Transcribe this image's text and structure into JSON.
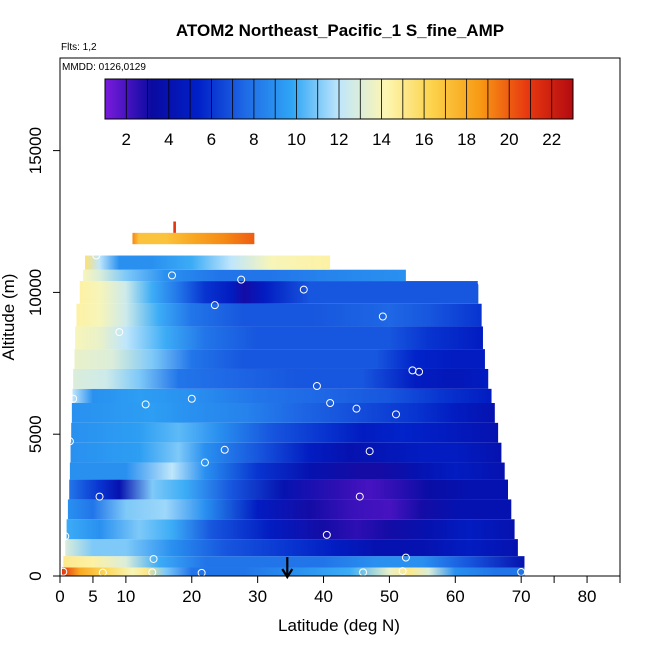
{
  "chart_data": {
    "type": "heatmap",
    "title": "ATOM2 Northeast_Pacific_1 S_fine_AMP",
    "flights_note": "Flts: 1,2",
    "dates_note": "MMDD: 0126,0129",
    "xlabel": "Latitude (deg N)",
    "ylabel": "Altitude (m)",
    "xlim": [
      0,
      85
    ],
    "ylim": [
      0,
      17000
    ],
    "x_ticks": [
      0,
      5,
      10,
      20,
      30,
      40,
      50,
      60,
      70,
      80
    ],
    "x_minor_ticks": [
      75,
      85
    ],
    "y_ticks": [
      0,
      5000,
      10000,
      15000
    ],
    "colorbar": {
      "range": [
        1,
        23
      ],
      "ticks": [
        2,
        4,
        6,
        8,
        10,
        12,
        14,
        16,
        18,
        20,
        22
      ],
      "colors": [
        "#7a1bdc",
        "#0a0aa0",
        "#0020c8",
        "#1f6ae6",
        "#2fa6f5",
        "#bfe6fb",
        "#fdf6b2",
        "#fcd24a",
        "#f89a14",
        "#e83a10",
        "#b40a10"
      ]
    },
    "marker": {
      "label": "arrow",
      "latitude": 34.5
    },
    "rows": [
      {
        "z0": 0,
        "z1": 300,
        "x0": 0.3,
        "x1": 70.5,
        "stops": [
          [
            0.3,
            21
          ],
          [
            3,
            18
          ],
          [
            7,
            16
          ],
          [
            11,
            14
          ],
          [
            13,
            15
          ],
          [
            16,
            11
          ],
          [
            20,
            8
          ],
          [
            28,
            8
          ],
          [
            36,
            9
          ],
          [
            44,
            10
          ],
          [
            50,
            13.5
          ],
          [
            53,
            15
          ],
          [
            56,
            13
          ],
          [
            60,
            9
          ],
          [
            66,
            8
          ],
          [
            70.5,
            8
          ]
        ]
      },
      {
        "z0": 300,
        "z1": 700,
        "x0": 0.5,
        "x1": 70.5,
        "stops": [
          [
            0.5,
            15
          ],
          [
            5,
            14.5
          ],
          [
            10,
            13
          ],
          [
            15,
            10
          ],
          [
            22,
            8
          ],
          [
            30,
            8
          ],
          [
            40,
            8
          ],
          [
            48,
            9
          ],
          [
            55,
            9
          ],
          [
            62,
            7
          ],
          [
            70.5,
            4
          ]
        ]
      },
      {
        "z0": 700,
        "z1": 1300,
        "x0": 0.8,
        "x1": 69.5,
        "stops": [
          [
            0.8,
            13
          ],
          [
            5,
            11
          ],
          [
            10,
            11
          ],
          [
            17,
            9
          ],
          [
            25,
            7
          ],
          [
            35,
            6
          ],
          [
            42,
            5
          ],
          [
            48,
            4
          ],
          [
            55,
            4
          ],
          [
            62,
            5
          ],
          [
            69.5,
            4
          ]
        ]
      },
      {
        "z0": 1300,
        "z1": 2000,
        "x0": 1,
        "x1": 69,
        "stops": [
          [
            1,
            10
          ],
          [
            6,
            9
          ],
          [
            12,
            11
          ],
          [
            17,
            10
          ],
          [
            23,
            7
          ],
          [
            32,
            5
          ],
          [
            40,
            3
          ],
          [
            45,
            2.5
          ],
          [
            50,
            3
          ],
          [
            56,
            4
          ],
          [
            62,
            5
          ],
          [
            69,
            4
          ]
        ]
      },
      {
        "z0": 2000,
        "z1": 2700,
        "x0": 1.2,
        "x1": 68.5,
        "stops": [
          [
            1.2,
            9
          ],
          [
            5,
            8
          ],
          [
            10,
            11
          ],
          [
            16,
            11.5
          ],
          [
            22,
            9
          ],
          [
            30,
            5
          ],
          [
            38,
            3
          ],
          [
            44,
            2.3
          ],
          [
            50,
            2
          ],
          [
            55,
            3
          ],
          [
            60,
            4
          ],
          [
            68.5,
            4
          ]
        ]
      },
      {
        "z0": 2700,
        "z1": 3400,
        "x0": 1.4,
        "x1": 68,
        "stops": [
          [
            1.4,
            8
          ],
          [
            6,
            6
          ],
          [
            9,
            4
          ],
          [
            14,
            11
          ],
          [
            19,
            10
          ],
          [
            26,
            7
          ],
          [
            34,
            4
          ],
          [
            42,
            2.5
          ],
          [
            47,
            2
          ],
          [
            51,
            2.5
          ],
          [
            56,
            3.5
          ],
          [
            62,
            4
          ],
          [
            68,
            4
          ]
        ]
      },
      {
        "z0": 3400,
        "z1": 4000,
        "x0": 1.5,
        "x1": 67.5,
        "stops": [
          [
            1.5,
            9
          ],
          [
            10,
            9
          ],
          [
            17,
            12
          ],
          [
            22,
            9
          ],
          [
            30,
            6
          ],
          [
            38,
            4
          ],
          [
            45,
            3
          ],
          [
            49,
            3
          ],
          [
            54,
            4
          ],
          [
            60,
            5
          ],
          [
            67.5,
            4
          ]
        ]
      },
      {
        "z0": 4000,
        "z1": 4700,
        "x0": 1.6,
        "x1": 67,
        "stops": [
          [
            1.6,
            9
          ],
          [
            12,
            9.5
          ],
          [
            18,
            11
          ],
          [
            22,
            9
          ],
          [
            30,
            7
          ],
          [
            38,
            5
          ],
          [
            44,
            4
          ],
          [
            50,
            4.5
          ],
          [
            55,
            5
          ],
          [
            60,
            5
          ],
          [
            67,
            4
          ]
        ]
      },
      {
        "z0": 4700,
        "z1": 5400,
        "x0": 1.7,
        "x1": 66.5,
        "stops": [
          [
            1.7,
            9
          ],
          [
            12,
            9.5
          ],
          [
            18,
            10.5
          ],
          [
            24,
            9
          ],
          [
            32,
            7
          ],
          [
            40,
            6
          ],
          [
            46,
            5
          ],
          [
            52,
            5.5
          ],
          [
            58,
            5
          ],
          [
            66.5,
            4
          ]
        ]
      },
      {
        "z0": 5400,
        "z1": 6100,
        "x0": 1.8,
        "x1": 66,
        "stops": [
          [
            1.8,
            9
          ],
          [
            14,
            9.5
          ],
          [
            20,
            9
          ],
          [
            28,
            8.5
          ],
          [
            36,
            7.5
          ],
          [
            42,
            7
          ],
          [
            48,
            6.5
          ],
          [
            54,
            6
          ],
          [
            60,
            5
          ],
          [
            66,
            4
          ]
        ]
      },
      {
        "z0": 6100,
        "z1": 6600,
        "x0": 1.9,
        "x1": 65.5,
        "stops": [
          [
            1.9,
            12
          ],
          [
            5,
            9
          ],
          [
            12,
            9.5
          ],
          [
            20,
            9
          ],
          [
            30,
            8
          ],
          [
            40,
            7.5
          ],
          [
            50,
            7
          ],
          [
            58,
            6
          ],
          [
            65.5,
            5
          ]
        ]
      },
      {
        "z0": 6600,
        "z1": 7300,
        "x0": 2,
        "x1": 65,
        "stops": [
          [
            2,
            13
          ],
          [
            7,
            12.5
          ],
          [
            12,
            11
          ],
          [
            18,
            8
          ],
          [
            26,
            7.5
          ],
          [
            36,
            7
          ],
          [
            46,
            7
          ],
          [
            54,
            5
          ],
          [
            60,
            4.5
          ],
          [
            65,
            5
          ]
        ]
      },
      {
        "z0": 7300,
        "z1": 8000,
        "x0": 2.2,
        "x1": 64.5,
        "stops": [
          [
            2.2,
            13.5
          ],
          [
            8,
            13
          ],
          [
            14,
            11
          ],
          [
            20,
            8
          ],
          [
            28,
            7
          ],
          [
            38,
            7
          ],
          [
            48,
            7
          ],
          [
            54,
            5.5
          ],
          [
            60,
            5
          ],
          [
            64.5,
            5
          ]
        ]
      },
      {
        "z0": 8000,
        "z1": 8800,
        "x0": 2.3,
        "x1": 64.2,
        "stops": [
          [
            2.3,
            14
          ],
          [
            6,
            13.5
          ],
          [
            10,
            12
          ],
          [
            16,
            10
          ],
          [
            22,
            8
          ],
          [
            30,
            7
          ],
          [
            40,
            7
          ],
          [
            50,
            7
          ],
          [
            56,
            6
          ],
          [
            64.2,
            5
          ]
        ]
      },
      {
        "z0": 8800,
        "z1": 9600,
        "x0": 2.5,
        "x1": 64,
        "stops": [
          [
            2.5,
            14.5
          ],
          [
            6,
            14
          ],
          [
            10,
            12.5
          ],
          [
            15,
            10
          ],
          [
            20,
            8
          ],
          [
            28,
            7
          ],
          [
            38,
            7
          ],
          [
            50,
            7.5
          ],
          [
            56,
            7
          ],
          [
            64,
            6
          ]
        ]
      },
      {
        "z0": 9600,
        "z1": 10400,
        "x0": 3,
        "x1": 63.5,
        "stops": [
          [
            3,
            14.5
          ],
          [
            6,
            14
          ],
          [
            10,
            12.5
          ],
          [
            14,
            10
          ],
          [
            18,
            8
          ],
          [
            22,
            6
          ],
          [
            26,
            5
          ],
          [
            28,
            3
          ],
          [
            31,
            5
          ],
          [
            38,
            7
          ],
          [
            48,
            7
          ],
          [
            56,
            7
          ],
          [
            63.5,
            7
          ]
        ]
      },
      {
        "z0": 10400,
        "z1": 10800,
        "x0": 3.5,
        "x1": 52.5,
        "stops": [
          [
            3.5,
            14
          ],
          [
            6,
            13
          ],
          [
            10,
            11
          ],
          [
            16,
            9
          ],
          [
            24,
            8
          ],
          [
            32,
            8
          ],
          [
            40,
            8.5
          ],
          [
            52.5,
            9
          ]
        ]
      },
      {
        "z0": 10800,
        "z1": 11300,
        "x0": 3.8,
        "x1": 41,
        "stops": [
          [
            3.8,
            15.5
          ],
          [
            6,
            12
          ],
          [
            9,
            9
          ],
          [
            14,
            9
          ],
          [
            20,
            10
          ],
          [
            26,
            12
          ],
          [
            32,
            14
          ],
          [
            41,
            14.5
          ]
        ]
      },
      {
        "z0": 11700,
        "z1": 12100,
        "x0": 11,
        "x1": 29.5,
        "stops": [
          [
            11,
            19
          ],
          [
            12,
            17
          ],
          [
            16,
            17
          ],
          [
            20,
            18
          ],
          [
            25,
            19
          ],
          [
            29.5,
            20
          ]
        ]
      },
      {
        "z0": 12100,
        "z1": 12500,
        "x0": 17.2,
        "x1": 17.6,
        "stops": [
          [
            17.2,
            21
          ],
          [
            17.6,
            21
          ]
        ]
      }
    ],
    "points": [
      {
        "lat": 0.5,
        "alt": 150
      },
      {
        "lat": 6.5,
        "alt": 120
      },
      {
        "lat": 14,
        "alt": 130
      },
      {
        "lat": 21.5,
        "alt": 110
      },
      {
        "lat": 46,
        "alt": 130
      },
      {
        "lat": 52,
        "alt": 170
      },
      {
        "lat": 70,
        "alt": 140
      },
      {
        "lat": 14.2,
        "alt": 600
      },
      {
        "lat": 52.5,
        "alt": 650
      },
      {
        "lat": 0.8,
        "alt": 1400
      },
      {
        "lat": 40.5,
        "alt": 1450
      },
      {
        "lat": 6,
        "alt": 2800
      },
      {
        "lat": 45.5,
        "alt": 2800
      },
      {
        "lat": 22,
        "alt": 4000
      },
      {
        "lat": 25,
        "alt": 4450
      },
      {
        "lat": 47,
        "alt": 4400
      },
      {
        "lat": 1.5,
        "alt": 4750
      },
      {
        "lat": 51,
        "alt": 5700
      },
      {
        "lat": 45,
        "alt": 5900
      },
      {
        "lat": 13,
        "alt": 6050
      },
      {
        "lat": 41,
        "alt": 6100
      },
      {
        "lat": 20,
        "alt": 6250
      },
      {
        "lat": 2,
        "alt": 6250
      },
      {
        "lat": 39,
        "alt": 6700
      },
      {
        "lat": 53.5,
        "alt": 7250
      },
      {
        "lat": 54.5,
        "alt": 7200
      },
      {
        "lat": 9,
        "alt": 8600
      },
      {
        "lat": 49,
        "alt": 9150
      },
      {
        "lat": 23.5,
        "alt": 9550
      },
      {
        "lat": 37,
        "alt": 10100
      },
      {
        "lat": 27.5,
        "alt": 10450
      },
      {
        "lat": 64,
        "alt": 10350
      },
      {
        "lat": 17,
        "alt": 10600
      },
      {
        "lat": 5.5,
        "alt": 11300
      }
    ]
  }
}
